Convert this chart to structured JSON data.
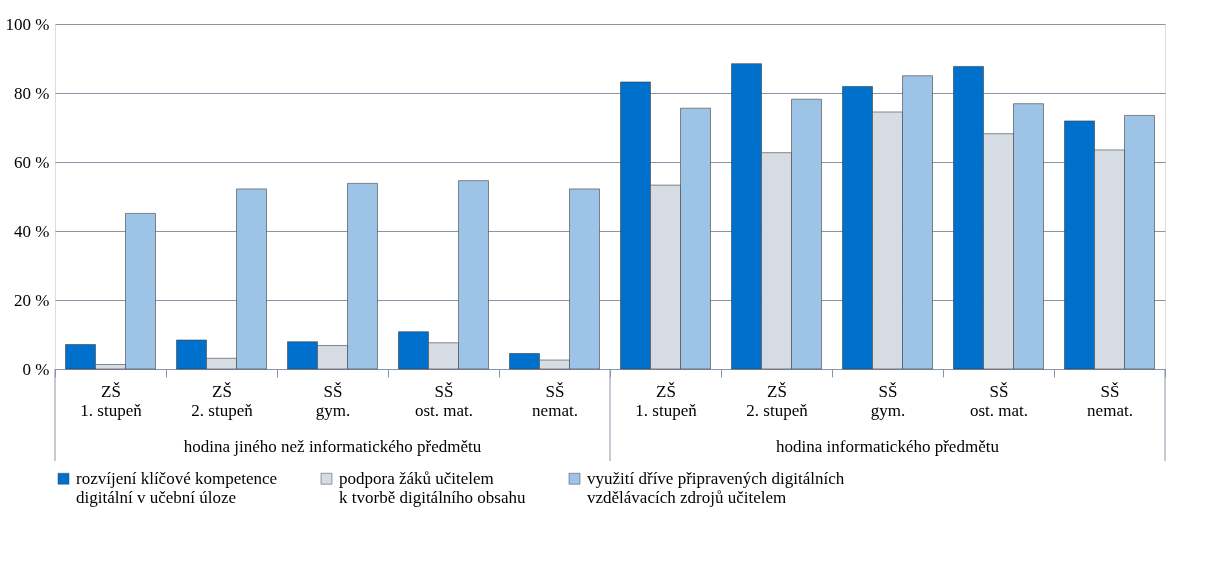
{
  "chart_data": {
    "type": "bar",
    "categories": [
      "ZŠ\n1. stupeň",
      "ZŠ\n2. stupeň",
      "SŠ\ngym.",
      "SŠ\nost. mat.",
      "SŠ\nnemat.",
      "ZŠ\n1. stupeň",
      "ZŠ\n2. stupeň",
      "SŠ\ngym.",
      "SŠ\nost. mat.",
      "SŠ\nnemat."
    ],
    "series": [
      {
        "name": "rozvíjení klíčové kompetence\ndigitální v učební úloze",
        "color": "#0070cd",
        "values": [
          7.1,
          8.4,
          7.9,
          10.8,
          4.5,
          83.2,
          88.5,
          81.9,
          87.7,
          71.9
        ]
      },
      {
        "name": "podpora žáků učitelem\nk tvorbě digitálního obsahu",
        "color": "#d6dce4",
        "values": [
          1.3,
          3.1,
          6.8,
          7.6,
          2.6,
          53.3,
          62.7,
          74.5,
          68.2,
          63.5
        ]
      },
      {
        "name": "využití dříve připravených digitálních\nvzdělávacích zdrojů učitelem",
        "color": "#9dc3e6",
        "values": [
          45.1,
          52.2,
          53.8,
          54.6,
          52.2,
          75.6,
          78.2,
          85.0,
          76.9,
          73.5
        ]
      }
    ],
    "annotations": [
      "hodina jiného než informatického předmětu",
      "hodina informatického předmětu"
    ],
    "ylim": [
      0,
      100
    ],
    "yticks": [
      {
        "value": 0,
        "label": "0 %"
      },
      {
        "value": 20,
        "label": "20 %"
      },
      {
        "value": 40,
        "label": "40 %"
      },
      {
        "value": 60,
        "label": "60 %"
      },
      {
        "value": 80,
        "label": "80 %"
      },
      {
        "value": 100,
        "label": "100 %"
      }
    ],
    "grid": "y",
    "legend": "bottom"
  }
}
